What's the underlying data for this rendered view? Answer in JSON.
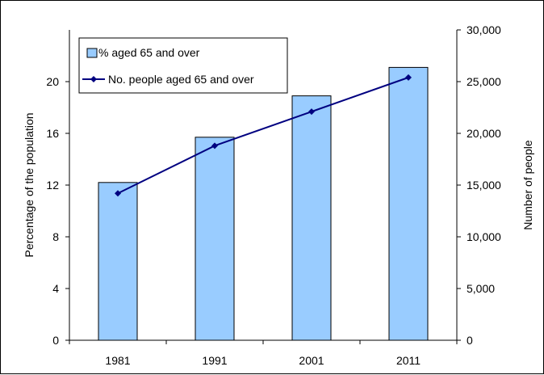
{
  "chart_data": {
    "type": "bar+line",
    "categories": [
      "1981",
      "1991",
      "2001",
      "2011"
    ],
    "series": [
      {
        "name": "% aged 65 and over",
        "type": "bar",
        "axis": "left",
        "values": [
          12.2,
          15.7,
          18.9,
          21.1
        ],
        "color": "#99ccff"
      },
      {
        "name": "No. people aged 65 and over",
        "type": "line",
        "axis": "right",
        "values": [
          14200,
          18800,
          22100,
          25400
        ],
        "color": "#000080"
      }
    ],
    "ylabel": "Percentage of the population",
    "y2label": "Number of people",
    "ylim": [
      0,
      24
    ],
    "y2lim": [
      0,
      30000
    ],
    "yticks": [
      "0",
      "4",
      "8",
      "12",
      "16",
      "20"
    ],
    "y2ticks": [
      "0",
      "5,000",
      "10,000",
      "15,000",
      "20,000",
      "25,000",
      "30,000"
    ],
    "legend_position": "top-left",
    "grid": false
  }
}
